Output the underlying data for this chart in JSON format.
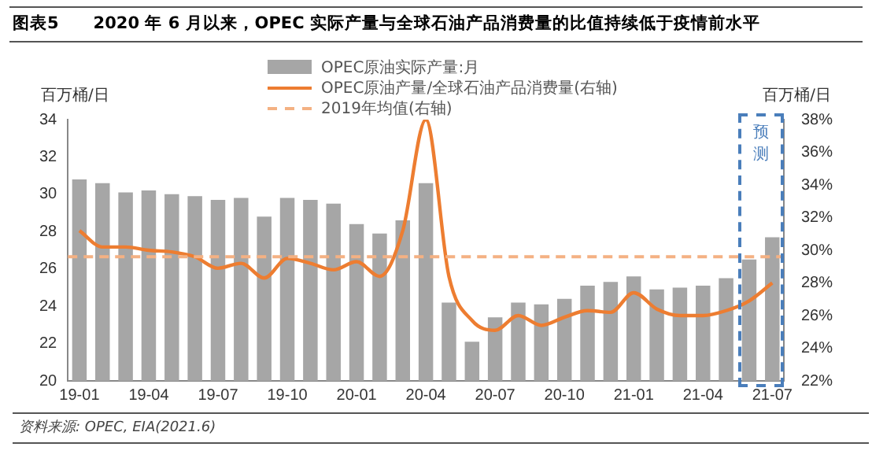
{
  "chart_data": {
    "type": "bar",
    "title": "图表5　　2020 年 6 月以来，OPEC 实际产量与全球石油产品消费量的比值持续低于疫情前水平",
    "categories": [
      "19-01",
      null,
      null,
      "19-04",
      null,
      null,
      "19-07",
      null,
      null,
      "19-10",
      null,
      null,
      "20-01",
      null,
      null,
      "20-04",
      null,
      null,
      "20-07",
      null,
      null,
      "20-10",
      null,
      null,
      "21-01",
      null,
      null,
      "21-04",
      null,
      null,
      "21-07"
    ],
    "series": [
      {
        "name": "OPEC原油实际产量:月",
        "color": "#a6a6a6",
        "values": [
          30.8,
          30.6,
          30.1,
          30.2,
          30.0,
          29.9,
          29.7,
          29.8,
          28.8,
          29.8,
          29.7,
          29.5,
          28.4,
          27.9,
          28.6,
          30.6,
          24.2,
          22.1,
          23.4,
          24.2,
          24.1,
          24.4,
          25.1,
          25.3,
          25.6,
          24.9,
          25.0,
          25.1,
          25.5,
          26.5,
          27.7
        ]
      },
      {
        "name": "OPEC原油产量/全球石油产品消费量(右轴)",
        "type": "line",
        "axis": "y2",
        "color": "#ed7d31",
        "values": [
          31.2,
          30.2,
          30.2,
          30.0,
          29.9,
          29.6,
          28.9,
          29.2,
          28.3,
          29.5,
          29.2,
          28.8,
          29.3,
          28.4,
          31.2,
          38.0,
          28.4,
          25.7,
          25.1,
          26.0,
          25.4,
          25.9,
          26.3,
          26.2,
          27.4,
          26.4,
          26.0,
          26.0,
          26.3,
          26.9,
          28.0
        ]
      }
    ],
    "ref_lines": [
      {
        "axis": "y2",
        "value": 29.6,
        "label": "2019年均值(右轴)",
        "color": "#f4b183",
        "line_style": "dashed"
      }
    ],
    "ylabel": "百万桶/日",
    "y2label": "百万桶/日",
    "ylim": [
      20,
      34
    ],
    "yticks": [
      20,
      22,
      24,
      26,
      28,
      30,
      32,
      34
    ],
    "y2lim": [
      22,
      38
    ],
    "y2ticks": [
      {
        "value": 22,
        "label": "22%"
      },
      {
        "value": 24,
        "label": "24%"
      },
      {
        "value": 26,
        "label": "26%"
      },
      {
        "value": 28,
        "label": "28%"
      },
      {
        "value": 30,
        "label": "30%"
      },
      {
        "value": 32,
        "label": "32%"
      },
      {
        "value": 34,
        "label": "34%"
      },
      {
        "value": 36,
        "label": "36%"
      },
      {
        "value": 38,
        "label": "38%"
      }
    ],
    "legend": "top",
    "grid": false,
    "annotations": [
      "预测",
      "资料来源: OPEC, EIA(2021.6)"
    ]
  }
}
